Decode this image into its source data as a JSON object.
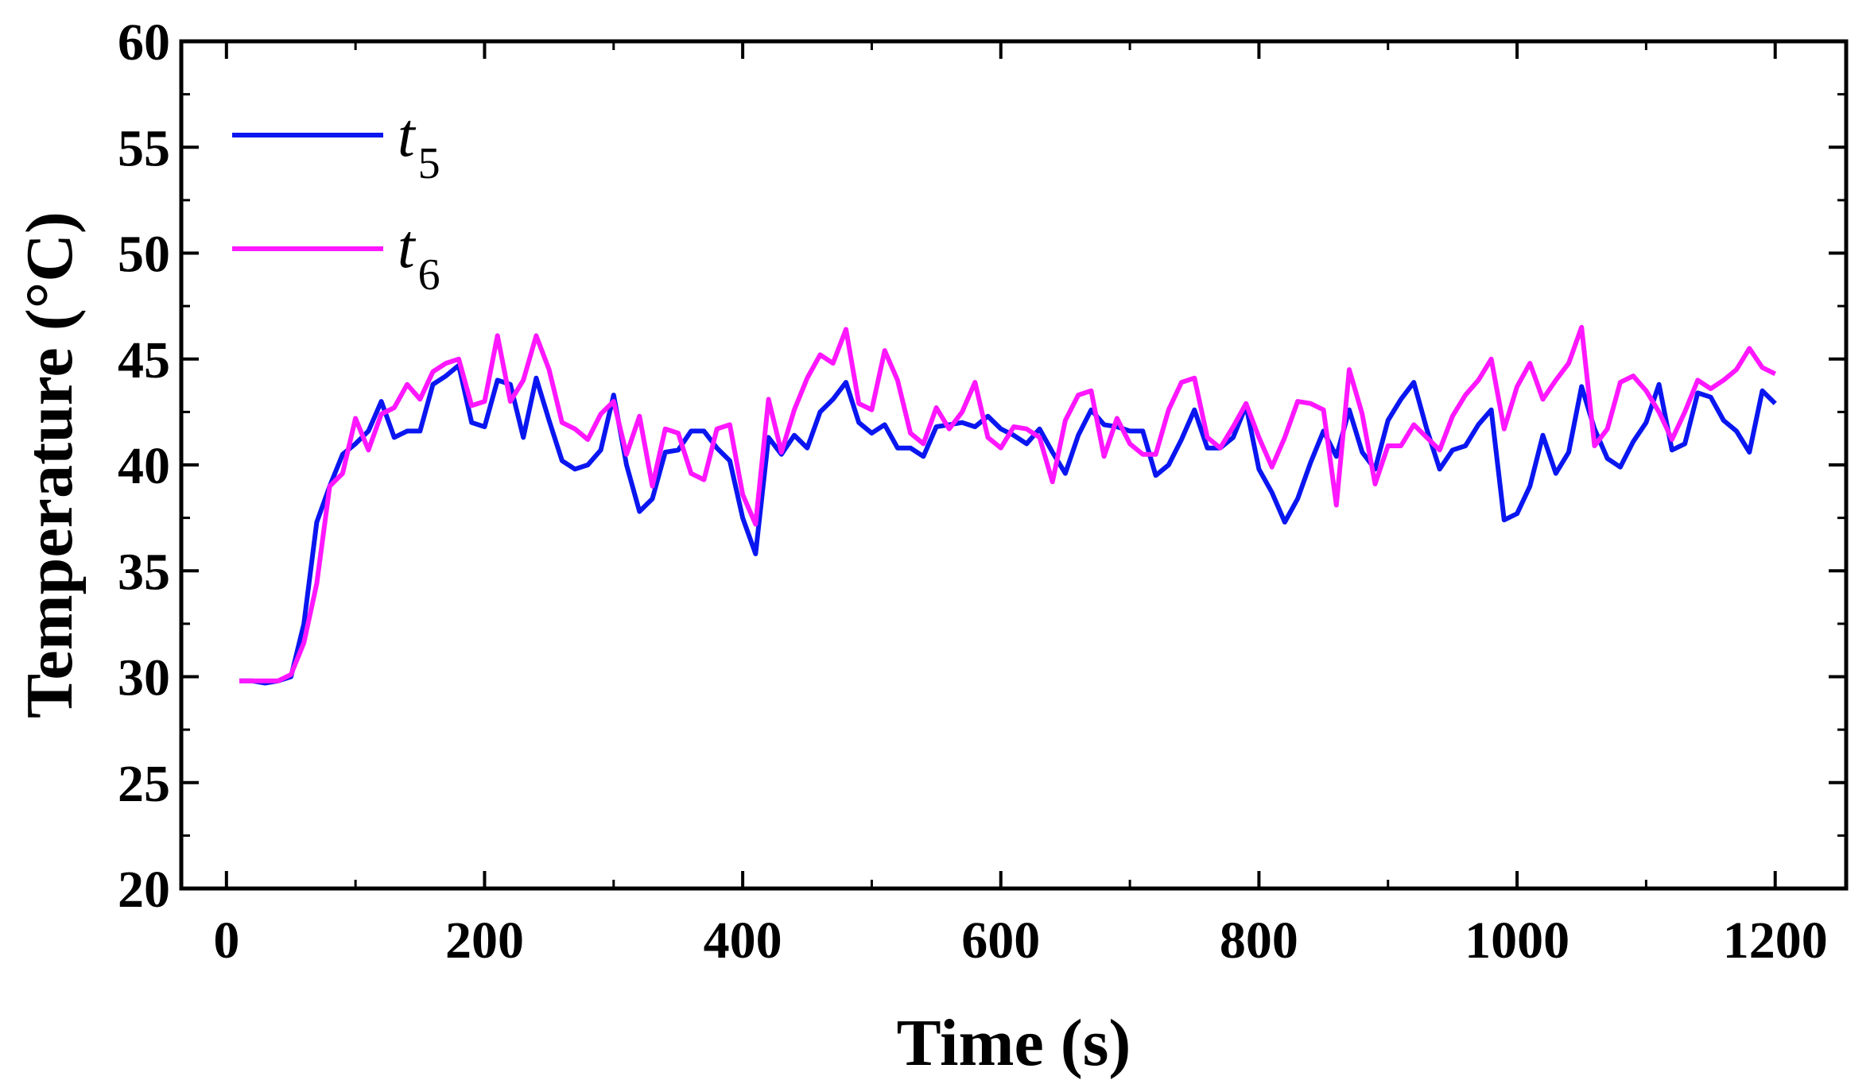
{
  "chart_data": {
    "type": "line",
    "title": "",
    "xlabel": "Time (s)",
    "ylabel": "Temperature (°C)",
    "xlim": [
      -35,
      1255
    ],
    "ylim": [
      20,
      60
    ],
    "xticks": [
      0,
      200,
      400,
      600,
      800,
      1000,
      1200
    ],
    "xtick_labels": [
      "0",
      "200",
      "400",
      "600",
      "800",
      "1000",
      "1200"
    ],
    "yticks": [
      20,
      25,
      30,
      35,
      40,
      45,
      50,
      55,
      60
    ],
    "ytick_labels": [
      "20",
      "25",
      "30",
      "35",
      "40",
      "45",
      "50",
      "55",
      "60"
    ],
    "grid": false,
    "legend_position": "top-left",
    "x": [
      10,
      20,
      30,
      40,
      50,
      60,
      70,
      80,
      90,
      100,
      110,
      120,
      130,
      140,
      150,
      160,
      170,
      180,
      190,
      200,
      210,
      220,
      230,
      240,
      250,
      260,
      270,
      280,
      290,
      300,
      310,
      320,
      330,
      340,
      350,
      360,
      370,
      380,
      390,
      400,
      410,
      420,
      430,
      440,
      450,
      460,
      470,
      480,
      490,
      500,
      510,
      520,
      530,
      540,
      550,
      560,
      570,
      580,
      590,
      600,
      610,
      620,
      630,
      640,
      650,
      660,
      670,
      680,
      690,
      700,
      710,
      720,
      730,
      740,
      750,
      760,
      770,
      780,
      790,
      800,
      810,
      820,
      830,
      840,
      850,
      860,
      870,
      880,
      890,
      900,
      910,
      920,
      930,
      940,
      950,
      960,
      970,
      980,
      990,
      1000,
      1010,
      1020,
      1030,
      1040,
      1050,
      1060,
      1070,
      1080,
      1090,
      1100,
      1110,
      1120,
      1130,
      1140,
      1150,
      1160,
      1170,
      1180,
      1190,
      1200
    ],
    "series": [
      {
        "name": "t5",
        "label_main": "t",
        "label_sub": "5",
        "color": "#0a16f0",
        "values": [
          29.8,
          29.8,
          29.7,
          29.8,
          30.0,
          32.5,
          37.3,
          39.0,
          40.5,
          41.0,
          41.6,
          43.0,
          41.3,
          41.6,
          41.6,
          43.8,
          44.2,
          44.7,
          42.0,
          41.8,
          44.0,
          43.8,
          41.3,
          44.1,
          42.1,
          40.2,
          39.8,
          40.0,
          40.7,
          43.3,
          40.0,
          37.8,
          38.4,
          40.6,
          40.7,
          41.6,
          41.6,
          40.8,
          40.2,
          37.5,
          35.8,
          41.3,
          40.5,
          41.4,
          40.8,
          42.5,
          43.1,
          43.9,
          42.0,
          41.5,
          41.9,
          40.8,
          40.8,
          40.4,
          41.8,
          41.9,
          42.0,
          41.8,
          42.3,
          41.7,
          41.4,
          41.0,
          41.7,
          40.6,
          39.6,
          41.4,
          42.6,
          41.9,
          41.8,
          41.6,
          41.6,
          39.5,
          40.0,
          41.2,
          42.6,
          40.8,
          40.8,
          41.3,
          42.8,
          39.8,
          38.7,
          37.3,
          38.4,
          40.1,
          41.6,
          40.4,
          42.6,
          40.6,
          39.8,
          42.1,
          43.1,
          43.9,
          41.7,
          39.8,
          40.7,
          40.9,
          41.9,
          42.6,
          37.4,
          37.7,
          39.0,
          41.4,
          39.6,
          40.6,
          43.7,
          41.7,
          40.3,
          39.9,
          41.1,
          42.0,
          43.8,
          40.7,
          41.0,
          43.4,
          43.2,
          42.1,
          41.6,
          40.6,
          43.5,
          42.9
        ]
      },
      {
        "name": "t6",
        "label_main": "t",
        "label_sub": "6",
        "color": "#ff17ff",
        "values": [
          29.8,
          29.8,
          29.8,
          29.8,
          30.1,
          31.6,
          34.4,
          39.0,
          39.6,
          42.2,
          40.7,
          42.4,
          42.7,
          43.8,
          43.1,
          44.4,
          44.8,
          45.0,
          42.8,
          43.0,
          46.1,
          43.0,
          44.0,
          46.1,
          44.5,
          42.0,
          41.7,
          41.2,
          42.4,
          43.0,
          40.5,
          42.3,
          39.0,
          41.7,
          41.5,
          39.6,
          39.3,
          41.7,
          41.9,
          38.6,
          37.2,
          43.1,
          40.6,
          42.6,
          44.1,
          45.2,
          44.8,
          46.4,
          42.9,
          42.6,
          45.4,
          44.0,
          41.5,
          41.0,
          42.7,
          41.7,
          42.5,
          43.9,
          41.3,
          40.8,
          41.8,
          41.7,
          41.3,
          39.2,
          42.1,
          43.3,
          43.5,
          40.4,
          42.2,
          41.0,
          40.5,
          40.5,
          42.6,
          43.9,
          44.1,
          41.3,
          40.8,
          41.8,
          42.9,
          41.3,
          39.9,
          41.3,
          43.0,
          42.9,
          42.6,
          38.1,
          44.5,
          42.4,
          39.1,
          40.9,
          40.9,
          41.9,
          41.3,
          40.7,
          42.3,
          43.3,
          44.0,
          45.0,
          41.7,
          43.7,
          44.8,
          43.1,
          44.0,
          44.8,
          46.5,
          40.9,
          41.7,
          43.9,
          44.2,
          43.5,
          42.5,
          41.2,
          42.5,
          44.0,
          43.6,
          44.0,
          44.5,
          45.5,
          44.6,
          44.3
        ]
      }
    ]
  }
}
